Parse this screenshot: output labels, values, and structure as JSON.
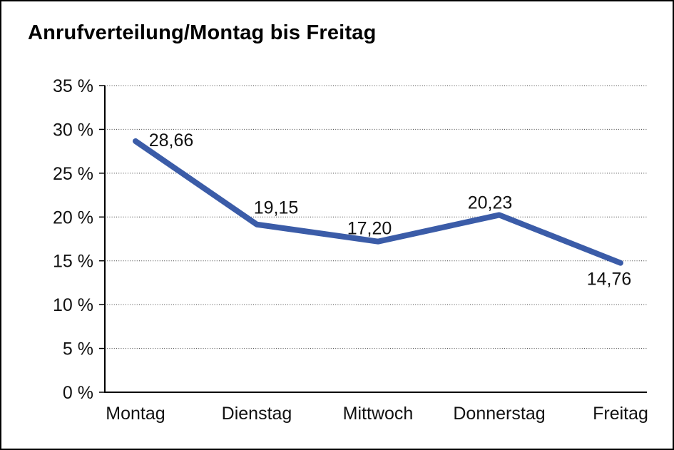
{
  "chart_data": {
    "type": "line",
    "title": "Anrufverteilung/Montag bis Freitag",
    "categories": [
      "Montag",
      "Dienstag",
      "Mittwoch",
      "Donnerstag",
      "Freitag"
    ],
    "series": [
      {
        "name": "Anrufverteilung",
        "values": [
          28.66,
          19.15,
          17.2,
          20.23,
          14.76
        ]
      }
    ],
    "point_labels": [
      "28,66",
      "19,15",
      "17,20",
      "20,23",
      "14,76"
    ],
    "y_axis": {
      "min": 0,
      "max": 35,
      "step": 5,
      "unit": "%",
      "tick_labels": [
        "0 %",
        "5 %",
        "10 %",
        "15 %",
        "20 %",
        "25 %",
        "30 %",
        "35 %"
      ]
    },
    "grid": "horizontal-dotted",
    "legend": "none",
    "line_color": "#3B5CA8",
    "axis_color": "#000000",
    "gridline_color": "#444444",
    "text_color": "#111111",
    "frame_color": "#000000",
    "background_color": "#ffffff"
  }
}
